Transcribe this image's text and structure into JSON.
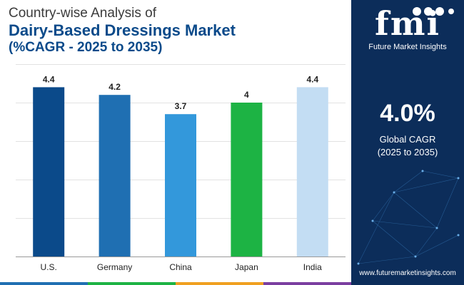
{
  "header": {
    "line1": "Country-wise Analysis of",
    "line2": "Dairy-Based Dressings Market",
    "line3": "(%CAGR - 2025 to 2035)"
  },
  "chart_data": {
    "type": "bar",
    "categories": [
      "U.S.",
      "Germany",
      "China",
      "Japan",
      "India"
    ],
    "values": [
      4.4,
      4.2,
      3.7,
      4,
      4.4
    ],
    "value_labels": [
      "4.4",
      "4.2",
      "3.7",
      "4",
      "4.4"
    ],
    "bar_colors": [
      "#0b4a8a",
      "#1f6fb2",
      "#3398db",
      "#1db344",
      "#c3ddf3"
    ],
    "ylim": [
      0,
      5
    ],
    "grid": true,
    "legend": "none"
  },
  "sidebar": {
    "logo_text": "fmi",
    "logo_subtitle": "Future Market Insights",
    "cagr_value": "4.0%",
    "cagr_label": "Global CAGR",
    "cagr_period": "(2025 to 2035)",
    "website": "www.futuremarketinsights.com",
    "background": "#0c2d5a"
  },
  "colors": {
    "title_blue": "#0b4a8a",
    "bottom_bar": [
      "#1f6fb2",
      "#1db344",
      "#f0a020",
      "#7b3fa0"
    ]
  }
}
